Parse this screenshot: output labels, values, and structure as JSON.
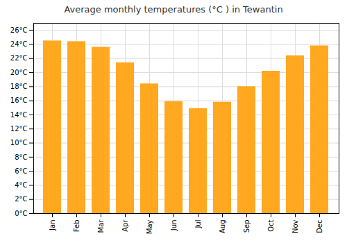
{
  "chart_data": {
    "type": "bar",
    "title": "Average monthly temperatures (°C ) in Tewantin",
    "categories": [
      "Jan",
      "Feb",
      "Mar",
      "Apr",
      "May",
      "Jun",
      "Jul",
      "Aug",
      "Sep",
      "Oct",
      "Nov",
      "Dec"
    ],
    "values": [
      24.5,
      24.4,
      23.6,
      21.4,
      18.4,
      15.9,
      14.9,
      15.8,
      18.0,
      20.2,
      22.4,
      23.8
    ],
    "color": "#FFA820",
    "ylim": [
      0,
      27
    ],
    "yticks": [
      {
        "value": 0,
        "label": "0°C"
      },
      {
        "value": 2,
        "label": "2°C"
      },
      {
        "value": 4,
        "label": "4°C"
      },
      {
        "value": 6,
        "label": "6°C"
      },
      {
        "value": 8,
        "label": "8°C"
      },
      {
        "value": 10,
        "label": "10°C"
      },
      {
        "value": 12,
        "label": "12°C"
      },
      {
        "value": 14,
        "label": "14°C"
      },
      {
        "value": 16,
        "label": "16°C"
      },
      {
        "value": 18,
        "label": "18°C"
      },
      {
        "value": 20,
        "label": "20°C"
      },
      {
        "value": 22,
        "label": "22°C"
      },
      {
        "value": 24,
        "label": "24°C"
      },
      {
        "value": 26,
        "label": "26°C"
      }
    ],
    "grid": true
  }
}
